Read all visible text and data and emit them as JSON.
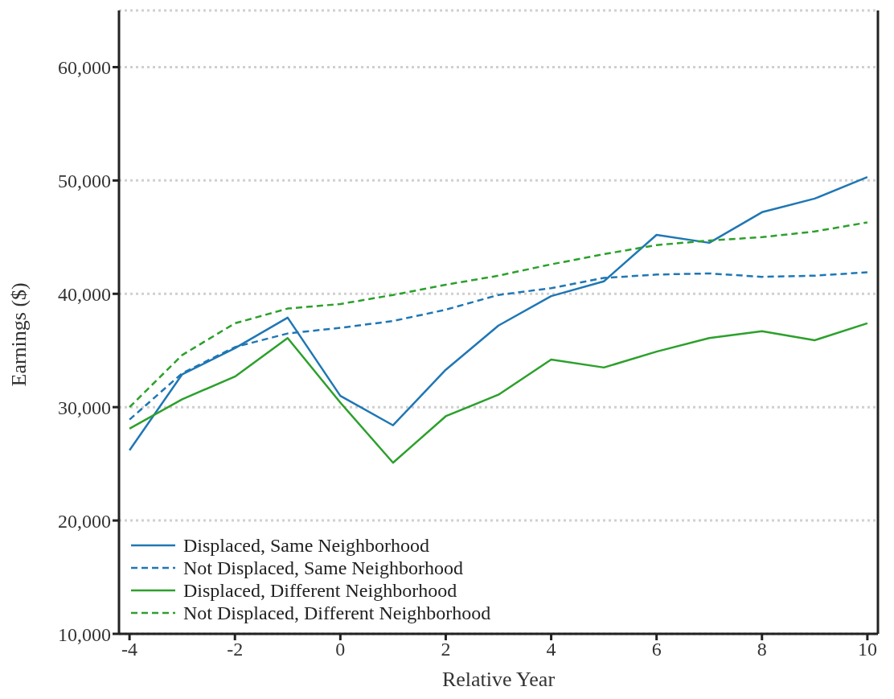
{
  "chart_data": {
    "type": "line",
    "xlabel": "Relative Year",
    "ylabel": "Earnings ($)",
    "x": [
      -4,
      -3,
      -2,
      -1,
      0,
      1,
      2,
      3,
      4,
      5,
      6,
      7,
      8,
      9,
      10
    ],
    "series": [
      {
        "name": "Displaced, Same Neighborhood",
        "color": "#1f77b4",
        "line_style": "solid",
        "values": [
          26200,
          32900,
          35200,
          37900,
          31000,
          28400,
          33300,
          37200,
          39800,
          41100,
          45200,
          44500,
          47200,
          48400,
          50300
        ]
      },
      {
        "name": "Not Displaced, Same Neighborhood",
        "color": "#1f77b4",
        "line_style": "dashed",
        "values": [
          28900,
          33000,
          35300,
          36500,
          37000,
          37600,
          38600,
          39900,
          40500,
          41400,
          41700,
          41800,
          41500,
          41600,
          41900
        ]
      },
      {
        "name": "Displaced, Different Neighborhood",
        "color": "#2ca02c",
        "line_style": "solid",
        "values": [
          28100,
          30700,
          32700,
          36100,
          30400,
          25100,
          29200,
          31100,
          34200,
          33500,
          34900,
          36100,
          36700,
          35900,
          37400
        ]
      },
      {
        "name": "Not Displaced, Different Neighborhood",
        "color": "#2ca02c",
        "line_style": "dashed",
        "values": [
          30000,
          34600,
          37400,
          38700,
          39100,
          39900,
          40800,
          41600,
          42600,
          43500,
          44300,
          44700,
          45000,
          45500,
          46300
        ]
      }
    ],
    "xlim": [
      -4.2,
      10.2
    ],
    "xticks": [
      -4,
      -2,
      0,
      2,
      4,
      6,
      8,
      10
    ],
    "ylim": [
      10000,
      65000
    ],
    "yticks": [
      {
        "value": 10000,
        "label": "10,000"
      },
      {
        "value": 20000,
        "label": "20,000"
      },
      {
        "value": 30000,
        "label": "30,000"
      },
      {
        "value": 40000,
        "label": "40,000"
      },
      {
        "value": 50000,
        "label": "50,000"
      },
      {
        "value": 60000,
        "label": "60,000"
      }
    ],
    "grid": "y",
    "legend": "bottom left",
    "marker": "none"
  }
}
